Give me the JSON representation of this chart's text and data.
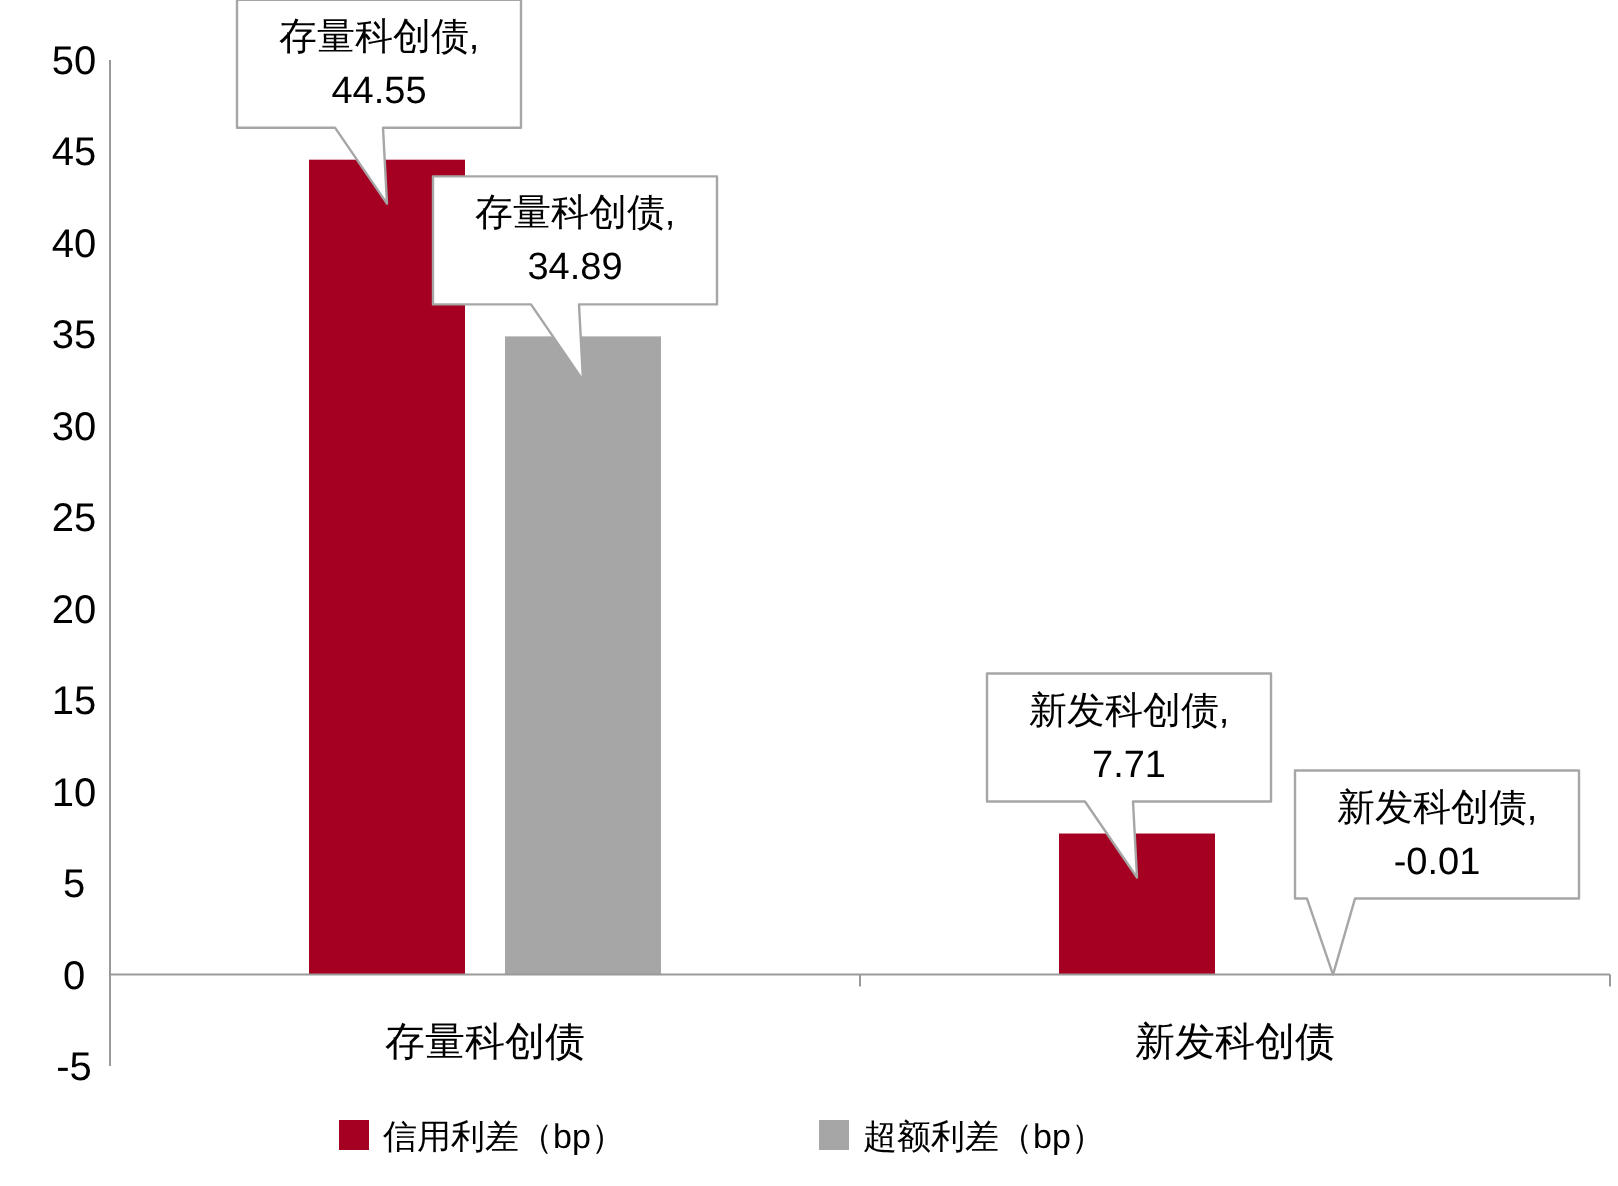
{
  "chart_data": {
    "type": "bar",
    "categories": [
      "存量科创债",
      "新发科创债"
    ],
    "series": [
      {
        "name": "信用利差（bp）",
        "color": "#a50021",
        "values": [
          44.55,
          7.71
        ],
        "value_labels": [
          "存量科创债,\n44.55",
          "新发科创债,\n7.71"
        ]
      },
      {
        "name": "超额利差（bp）",
        "color": "#a6a6a6",
        "values": [
          34.89,
          -0.01
        ],
        "value_labels": [
          "存量科创债,\n34.89",
          "新发科创债,\n-0.01"
        ]
      }
    ],
    "ylim": [
      -5,
      50
    ],
    "yticks": [
      -5,
      0,
      5,
      10,
      15,
      20,
      25,
      30,
      35,
      40,
      45,
      50
    ],
    "grid": false,
    "legend": "bottom"
  }
}
